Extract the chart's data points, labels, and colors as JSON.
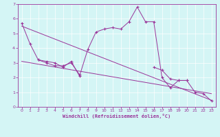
{
  "background_color": "#d4f5f5",
  "line_color": "#993399",
  "xlim": [
    -0.5,
    23.5
  ],
  "ylim": [
    0,
    7
  ],
  "xticks": [
    0,
    1,
    2,
    3,
    4,
    5,
    6,
    7,
    8,
    9,
    10,
    11,
    12,
    13,
    14,
    15,
    16,
    17,
    18,
    19,
    20,
    21,
    22,
    23
  ],
  "yticks": [
    0,
    1,
    2,
    3,
    4,
    5,
    6,
    7
  ],
  "xlabel": "Windchill (Refroidissement éolien,°C)",
  "line1_x": [
    0,
    1,
    2,
    3,
    4,
    5,
    6,
    7,
    8,
    9,
    10,
    11,
    12,
    13,
    14,
    15,
    16,
    17,
    18,
    19,
    20,
    21,
    22,
    23
  ],
  "line1_y": [
    5.7,
    4.3,
    3.2,
    3.1,
    3.0,
    2.7,
    3.1,
    2.1,
    3.9,
    5.1,
    5.3,
    5.4,
    5.3,
    5.8,
    6.8,
    5.8,
    5.8,
    2.0,
    1.3,
    1.8,
    1.8,
    1.0,
    0.9,
    0.4
  ],
  "line2_x": [
    2,
    3,
    4,
    5,
    6,
    7
  ],
  "line2_y": [
    3.2,
    3.0,
    2.8,
    2.8,
    3.0,
    2.2
  ],
  "line3_x": [
    0,
    23
  ],
  "line3_y": [
    5.5,
    0.45
  ],
  "line4_x": [
    0,
    23
  ],
  "line4_y": [
    3.1,
    0.9
  ],
  "line5_x": [
    16,
    17,
    18,
    19,
    20
  ],
  "line5_y": [
    2.7,
    2.5,
    1.9,
    1.8,
    1.8
  ],
  "marker_size": 3,
  "linewidth": 0.7,
  "tick_fontsize": 4.5,
  "xlabel_fontsize": 5.0
}
